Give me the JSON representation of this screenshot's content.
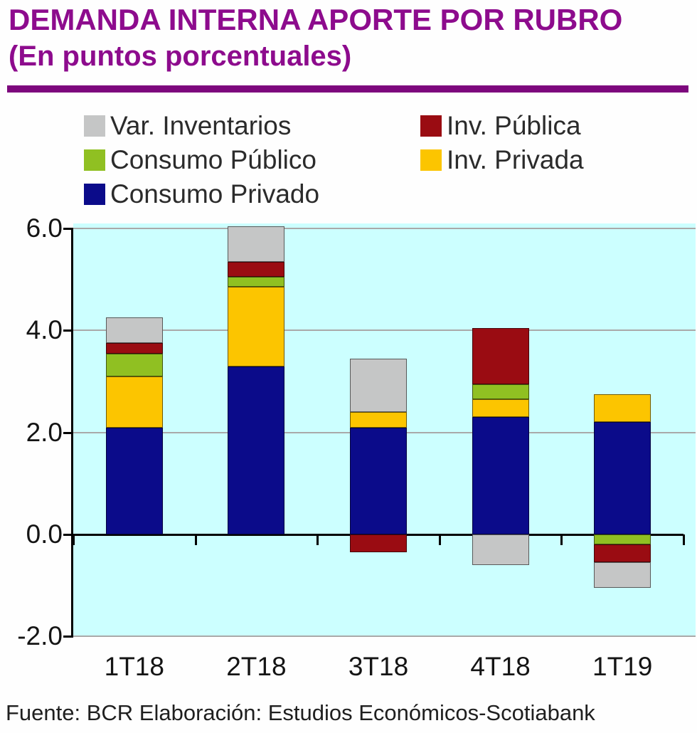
{
  "header": {
    "title": "DEMANDA INTERNA APORTE POR RUBRO",
    "subtitle": "(En puntos porcentuales)",
    "accent_color": "#8d0b8d"
  },
  "legend": {
    "items": [
      "Var. Inventarios",
      "Inv. Pública",
      "Consumo Público",
      "Inv. Privada",
      "Consumo Privado"
    ]
  },
  "chart_data": {
    "type": "bar",
    "stacked": true,
    "title": "DEMANDA INTERNA APORTE POR RUBRO",
    "subtitle": "(En puntos porcentuales)",
    "categories": [
      "1T18",
      "2T18",
      "3T18",
      "4T18",
      "1T19"
    ],
    "series": [
      {
        "name": "Consumo Privado",
        "color": "#0b0b8a",
        "values": [
          2.1,
          3.3,
          2.1,
          2.3,
          2.2
        ]
      },
      {
        "name": "Inv. Privada",
        "color": "#fcc500",
        "values": [
          1.0,
          1.55,
          0.3,
          0.35,
          0.55
        ]
      },
      {
        "name": "Consumo Público",
        "color": "#90c022",
        "values": [
          0.45,
          0.2,
          0.0,
          0.3,
          -0.2
        ]
      },
      {
        "name": "Inv. Pública",
        "color": "#9a0c12",
        "values": [
          0.2,
          0.3,
          -0.35,
          1.1,
          -0.35
        ]
      },
      {
        "name": "Var. Inventarios",
        "color": "#c5c6c6",
        "values": [
          0.5,
          0.7,
          1.05,
          -0.6,
          -0.5
        ]
      }
    ],
    "xlabel": "",
    "ylabel": "",
    "ylim": [
      -2.0,
      6.1
    ],
    "yticks": [
      6.0,
      4.0,
      2.0,
      0.0,
      -2.0
    ],
    "ytick_labels": [
      "6.0",
      "4.0",
      "2.0",
      "0.0",
      "-2.0"
    ],
    "grid": true,
    "legend_position": "top",
    "plot_bg": "#ccffff",
    "gridline_color": "#a9a9a9",
    "axis_color": "#000000"
  },
  "footer": {
    "text": "Fuente: BCR  Elaboración: Estudios Económicos-Scotiabank"
  }
}
